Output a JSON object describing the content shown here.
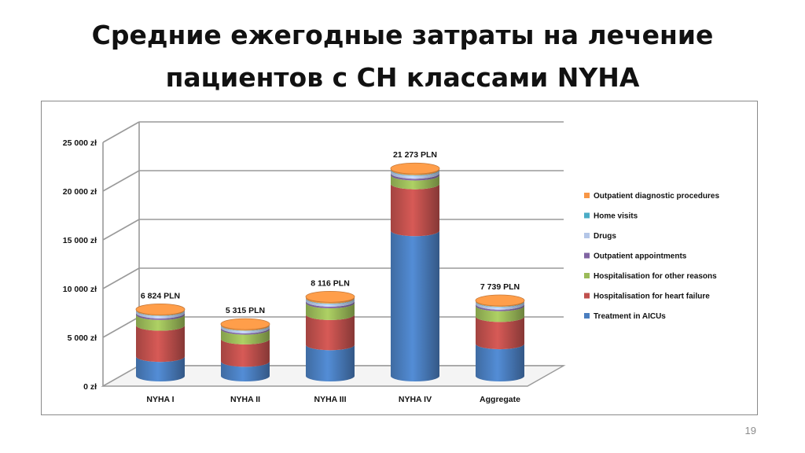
{
  "slide": {
    "title_line1": "Средние ежегодные затраты на лечение",
    "title_line2": "пациентов с СН классами NYHA",
    "page_number": "19"
  },
  "chart_data": {
    "type": "bar",
    "stacked": true,
    "style": "3d-cylinder",
    "categories": [
      "NYHA I",
      "NYHA II",
      "NYHA III",
      "NYHA IV",
      "Aggregate"
    ],
    "total_labels": [
      "6 824 PLN",
      "5 315 PLN",
      "8 116 PLN",
      "21 273 PLN",
      "7 739 PLN"
    ],
    "y_ticks": [
      "0 zł",
      "5 000 zł",
      "10 000 zł",
      "15 000 zł",
      "20 000 zł",
      "25 000 zł"
    ],
    "ylim": [
      0,
      25000
    ],
    "grid": true,
    "legend_position": "right",
    "series": [
      {
        "name": "Treatment in AICUs",
        "color": "#4a7ebf",
        "values": [
          2000,
          1500,
          3200,
          14900,
          3300
        ]
      },
      {
        "name": "Hospitalisation for heart failure",
        "color": "#c0504d",
        "values": [
          3200,
          2300,
          3100,
          4800,
          2800
        ]
      },
      {
        "name": "Hospitalisation for other reasons",
        "color": "#9bbb59",
        "values": [
          1100,
          1000,
          1200,
          900,
          1100
        ]
      },
      {
        "name": "Outpatient appointments",
        "color": "#8064a2",
        "values": [
          160,
          140,
          170,
          190,
          160
        ]
      },
      {
        "name": "Drugs",
        "color": "#b4c6e7",
        "values": [
          240,
          230,
          260,
          300,
          250
        ]
      },
      {
        "name": "Home visits",
        "color": "#4bacc6",
        "values": [
          40,
          40,
          50,
          60,
          45
        ]
      },
      {
        "name": "Outpatient diagnostic procedures",
        "color": "#f79646",
        "values": [
          84,
          105,
          136,
          123,
          84
        ]
      }
    ]
  }
}
